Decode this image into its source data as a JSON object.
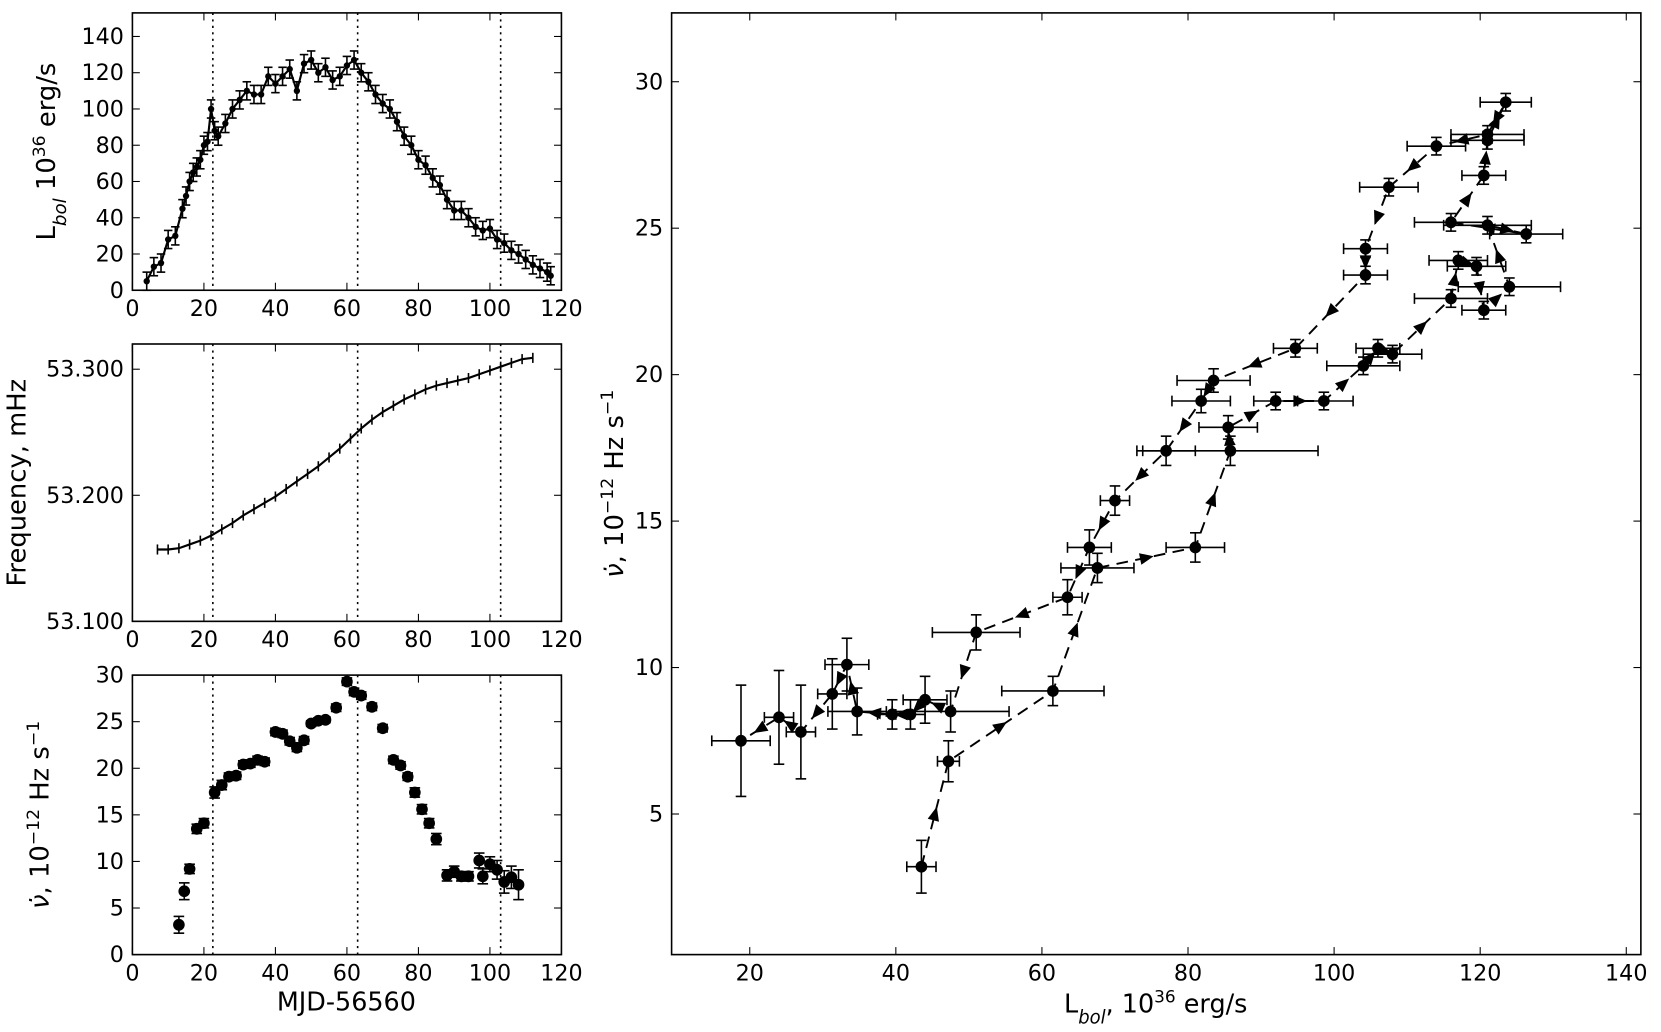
{
  "chart_data": [
    {
      "type": "line",
      "markers": true,
      "xlim": [
        0,
        120
      ],
      "ylim": [
        0,
        153
      ],
      "xticks": [
        0,
        20,
        40,
        60,
        80,
        100,
        120
      ],
      "yticks": [
        0,
        20,
        40,
        60,
        80,
        100,
        120,
        140
      ],
      "vlines": [
        22.5,
        63,
        103
      ],
      "ylabel": [
        {
          "text": "L"
        },
        {
          "text": "bol",
          "pos": "sub"
        },
        {
          "text": " 10"
        },
        {
          "text": "36",
          "pos": "sup"
        },
        {
          "text": "  erg/s"
        }
      ],
      "x": [
        4,
        6,
        8,
        10,
        12,
        14,
        15,
        16,
        17,
        18,
        19,
        20,
        21,
        22,
        23,
        24,
        26,
        28,
        30,
        32,
        34,
        36,
        38,
        40,
        42,
        44,
        46,
        48,
        50,
        52,
        54,
        56,
        58,
        60,
        62,
        64,
        66,
        68,
        70,
        72,
        74,
        76,
        78,
        80,
        82,
        84,
        86,
        88,
        90,
        92,
        94,
        96,
        98,
        100,
        102,
        104,
        106,
        108,
        110,
        112,
        114,
        116,
        117
      ],
      "values": [
        5,
        13,
        15,
        28,
        30,
        45,
        52,
        60,
        65,
        68,
        72,
        80,
        82,
        100,
        88,
        85,
        92,
        100,
        105,
        110,
        108,
        108,
        118,
        114,
        118,
        122,
        110,
        125,
        127,
        120,
        123,
        116,
        118,
        124,
        127,
        120,
        115,
        108,
        103,
        100,
        93,
        85,
        80,
        72,
        69,
        62,
        58,
        50,
        44,
        44,
        40,
        35,
        33,
        34,
        28,
        26,
        22,
        20,
        17,
        14,
        12,
        10,
        8
      ],
      "y_err": 5,
      "color": "#000000"
    },
    {
      "type": "line",
      "markers": false,
      "xlim": [
        0,
        120
      ],
      "ylim": [
        53.1,
        53.32
      ],
      "xticks": [
        0,
        20,
        40,
        60,
        80,
        100,
        120
      ],
      "yticks": [
        {
          "value": 53.1,
          "label": "53.100"
        },
        {
          "value": 53.2,
          "label": "53.200"
        },
        {
          "value": 53.3,
          "label": "53.300"
        }
      ],
      "vlines": [
        22.5,
        63,
        103
      ],
      "ylabel": [
        {
          "text": "Frequency, mHz"
        }
      ],
      "x": [
        7,
        10,
        13,
        16,
        19,
        22,
        25,
        28,
        31,
        34,
        37,
        40,
        43,
        46,
        49,
        52,
        55,
        58,
        61,
        64,
        67,
        70,
        73,
        76,
        79,
        82,
        85,
        88,
        91,
        94,
        97,
        100,
        103,
        106,
        109,
        112
      ],
      "values": [
        53.157,
        53.157,
        53.158,
        53.161,
        53.164,
        53.168,
        53.173,
        53.178,
        53.184,
        53.189,
        53.194,
        53.199,
        53.205,
        53.211,
        53.217,
        53.223,
        53.23,
        53.237,
        53.245,
        53.253,
        53.26,
        53.266,
        53.271,
        53.276,
        53.28,
        53.284,
        53.287,
        53.289,
        53.291,
        53.293,
        53.296,
        53.299,
        53.302,
        53.305,
        53.308,
        53.309
      ],
      "y_err": 0.004,
      "color": "#000000"
    },
    {
      "type": "scatter",
      "xlim": [
        0,
        120
      ],
      "ylim": [
        0,
        30
      ],
      "xticks": [
        0,
        20,
        40,
        60,
        80,
        100,
        120
      ],
      "yticks": [
        0,
        5,
        10,
        15,
        20,
        25,
        30
      ],
      "vlines": [
        22.5,
        63,
        103
      ],
      "xlabel": [
        {
          "text": "MJD-56560"
        }
      ],
      "ylabel": [
        {
          "text": "ν̇",
          "pos": "it"
        },
        {
          "text": ", 10"
        },
        {
          "text": "−12",
          "pos": "sup"
        },
        {
          "text": "  Hz s"
        },
        {
          "text": "−1",
          "pos": "sup"
        }
      ],
      "x": [
        13,
        14.5,
        16,
        18,
        20,
        23,
        25,
        27,
        29,
        31,
        33,
        35,
        37,
        40,
        42,
        44,
        46,
        48,
        50,
        52,
        54,
        57,
        60,
        62,
        64,
        67,
        70,
        73,
        75,
        77,
        79,
        81,
        83,
        85,
        88,
        90,
        92,
        94,
        97,
        98,
        100,
        102,
        104,
        106,
        108
      ],
      "values": [
        3.2,
        6.8,
        9.2,
        13.5,
        14.1,
        17.4,
        18.2,
        19.1,
        19.2,
        20.4,
        20.5,
        20.9,
        20.7,
        23.9,
        23.7,
        22.9,
        22.2,
        23.0,
        24.8,
        25.1,
        25.2,
        26.5,
        29.3,
        28.2,
        27.8,
        26.6,
        24.3,
        20.9,
        20.3,
        19.1,
        17.4,
        15.6,
        14.1,
        12.4,
        8.5,
        8.9,
        8.4,
        8.4,
        10.1,
        8.4,
        9.7,
        9.1,
        7.8,
        8.3,
        7.5
      ],
      "y_err": [
        0.9,
        0.9,
        0.5,
        0.5,
        0.5,
        0.6,
        0.5,
        0.4,
        0.4,
        0.4,
        0.4,
        0.4,
        0.4,
        0.4,
        0.4,
        0.4,
        0.4,
        0.4,
        0.3,
        0.3,
        0.3,
        0.4,
        0.4,
        0.4,
        0.4,
        0.4,
        0.4,
        0.4,
        0.4,
        0.4,
        0.5,
        0.5,
        0.5,
        0.6,
        0.6,
        0.6,
        0.5,
        0.5,
        0.8,
        0.8,
        0.8,
        1.0,
        1.2,
        1.2,
        1.6
      ],
      "color": "#000000"
    },
    {
      "type": "scatter",
      "connect": "dashed-arrows",
      "xlim": [
        9.3,
        142
      ],
      "ylim": [
        0.2,
        32.35
      ],
      "xticks": [
        20,
        40,
        60,
        80,
        100,
        120,
        140
      ],
      "yticks": [
        5,
        10,
        15,
        20,
        25,
        30
      ],
      "xlabel": [
        {
          "text": "L"
        },
        {
          "text": "bol",
          "pos": "sub"
        },
        {
          "text": ", 10"
        },
        {
          "text": "36",
          "pos": "sup"
        },
        {
          "text": "  erg/s"
        }
      ],
      "ylabel": [
        {
          "text": "ν̇",
          "pos": "it"
        },
        {
          "text": ", 10"
        },
        {
          "text": "−12",
          "pos": "sup"
        },
        {
          "text": "  Hz s"
        },
        {
          "text": "−1",
          "pos": "sup"
        }
      ],
      "x": [
        43.5,
        47.2,
        61.5,
        67.6,
        81,
        85.8,
        85.5,
        92,
        98.6,
        104,
        106,
        108,
        116,
        117,
        119.5,
        120.5,
        124,
        121,
        126.3,
        116,
        120.5,
        121,
        123.5,
        121,
        114,
        107.5,
        104.3,
        104.3,
        94.7,
        83.5,
        81.8,
        77,
        70,
        66.5,
        63.5,
        51,
        47.5,
        44,
        42,
        39.5,
        34.7,
        33.3,
        31.3,
        27,
        24,
        18.8
      ],
      "values": [
        3.2,
        6.8,
        9.2,
        13.4,
        14.1,
        17.4,
        18.2,
        19.1,
        19.1,
        20.3,
        20.9,
        20.7,
        22.6,
        23.9,
        23.7,
        22.2,
        23.0,
        25.1,
        24.8,
        25.2,
        26.8,
        28.0,
        29.3,
        28.2,
        27.8,
        26.4,
        24.3,
        23.4,
        20.9,
        19.8,
        19.1,
        17.4,
        15.7,
        14.1,
        12.4,
        11.2,
        8.5,
        8.9,
        8.4,
        8.4,
        8.5,
        10.1,
        9.1,
        7.8,
        8.3,
        7.5
      ],
      "x_err": [
        2,
        1.5,
        7,
        5,
        4,
        12,
        4,
        3,
        4,
        5,
        3,
        4,
        5,
        4,
        4,
        3,
        7,
        6,
        5,
        5,
        3,
        5,
        3.5,
        5,
        4,
        4,
        3,
        3,
        3,
        5,
        4,
        4,
        2,
        3,
        2,
        6,
        8,
        3,
        2,
        2,
        4,
        3,
        2,
        2,
        2,
        4
      ],
      "y_err": [
        0.9,
        0.7,
        0.5,
        0.5,
        0.5,
        0.5,
        0.4,
        0.3,
        0.3,
        0.3,
        0.3,
        0.3,
        0.3,
        0.3,
        0.3,
        0.3,
        0.3,
        0.3,
        0.3,
        0.3,
        0.3,
        0.3,
        0.3,
        0.3,
        0.3,
        0.3,
        0.3,
        0.3,
        0.3,
        0.4,
        0.4,
        0.5,
        0.5,
        0.6,
        0.6,
        0.6,
        0.7,
        0.8,
        0.5,
        0.5,
        0.8,
        0.9,
        1.2,
        1.6,
        1.6,
        1.9
      ],
      "color": "#000000"
    }
  ]
}
